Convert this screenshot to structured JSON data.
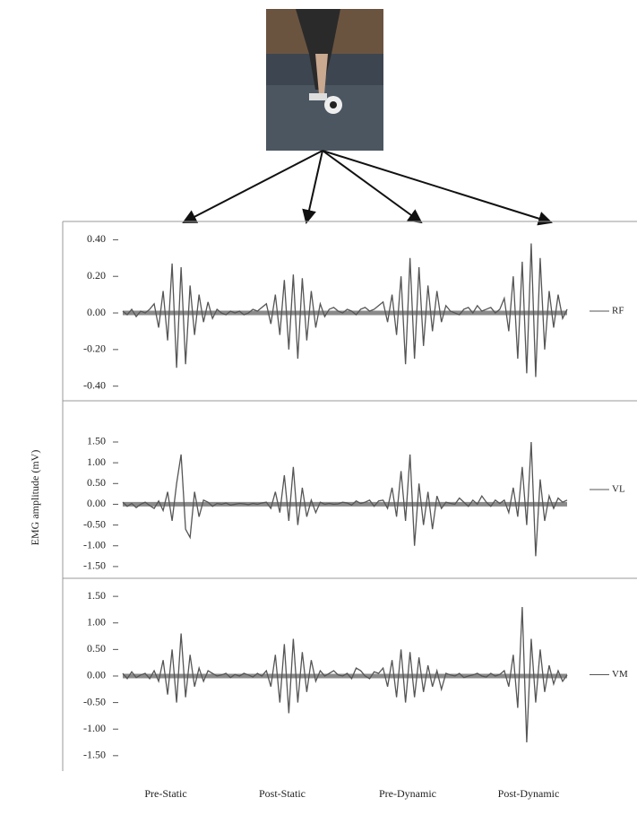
{
  "y_axis_label": "EMG amplitude (mV)",
  "condition_labels": [
    "Pre-Static",
    "Post-Static",
    "Pre-Dynamic",
    "Post-Dynamic"
  ],
  "chart_data": [
    {
      "type": "line",
      "ylim": [
        -0.48,
        0.5
      ],
      "yticks": [
        {
          "value": 0.4,
          "label": "0.40"
        },
        {
          "value": 0.2,
          "label": "0.20"
        },
        {
          "value": 0,
          "label": "0.00"
        },
        {
          "value": -0.2,
          "label": "-0.20"
        },
        {
          "value": -0.4,
          "label": "-0.40"
        }
      ],
      "series": [
        {
          "name": "RF",
          "color": "#555555",
          "values": [
            0.01,
            -0.01,
            0.02,
            -0.02,
            0.01,
            0.0,
            0.02,
            0.05,
            -0.08,
            0.12,
            -0.15,
            0.27,
            -0.3,
            0.25,
            -0.28,
            0.15,
            -0.12,
            0.1,
            -0.05,
            0.06,
            -0.03,
            0.02,
            0.0,
            -0.01,
            0.01,
            0.0,
            0.01,
            -0.01,
            0.0,
            0.02,
            0.01,
            0.03,
            0.05,
            -0.06,
            0.1,
            -0.12,
            0.18,
            -0.2,
            0.21,
            -0.25,
            0.19,
            -0.15,
            0.12,
            -0.08,
            0.05,
            -0.02,
            0.02,
            0.03,
            0.01,
            0.0,
            0.02,
            0.01,
            -0.01,
            0.02,
            0.03,
            0.01,
            0.02,
            0.04,
            0.06,
            -0.05,
            0.1,
            -0.12,
            0.2,
            -0.28,
            0.3,
            -0.25,
            0.25,
            -0.18,
            0.15,
            -0.1,
            0.12,
            -0.05,
            0.04,
            0.01,
            0.0,
            -0.01,
            0.02,
            0.03,
            0.0,
            0.04,
            0.01,
            0.02,
            0.03,
            0.0,
            0.02,
            0.08,
            -0.1,
            0.2,
            -0.25,
            0.28,
            -0.33,
            0.38,
            -0.35,
            0.3,
            -0.2,
            0.12,
            -0.08,
            0.1,
            -0.03,
            0.02
          ]
        }
      ]
    },
    {
      "type": "line",
      "ylim": [
        -1.74,
        2.45
      ],
      "yticks": [
        {
          "value": 1.5,
          "label": "1.50"
        },
        {
          "value": 1,
          "label": "1.00"
        },
        {
          "value": 0.5,
          "label": "0.50"
        },
        {
          "value": 0,
          "label": "0.00"
        },
        {
          "value": -0.5,
          "label": "-0.50"
        },
        {
          "value": -1,
          "label": "-1.00"
        },
        {
          "value": -1.5,
          "label": "-1.50"
        }
      ],
      "series": [
        {
          "name": "VL",
          "color": "#555555",
          "values": [
            0.05,
            -0.05,
            0.02,
            -0.08,
            0.0,
            0.05,
            -0.03,
            -0.1,
            0.08,
            -0.15,
            0.3,
            -0.4,
            0.5,
            1.2,
            -0.6,
            -0.8,
            0.3,
            -0.3,
            0.1,
            0.05,
            -0.05,
            0.02,
            0.0,
            0.03,
            -0.02,
            0.0,
            0.02,
            0.01,
            -0.01,
            0.02,
            0.0,
            0.03,
            0.05,
            -0.1,
            0.3,
            -0.2,
            0.7,
            -0.4,
            0.9,
            -0.5,
            0.4,
            -0.3,
            0.1,
            -0.2,
            0.05,
            0.0,
            0.02,
            0.0,
            0.01,
            0.05,
            0.03,
            -0.02,
            0.08,
            0.02,
            0.05,
            0.1,
            -0.05,
            0.08,
            0.1,
            -0.1,
            0.4,
            -0.3,
            0.8,
            -0.4,
            1.2,
            -1.0,
            0.5,
            -0.5,
            0.3,
            -0.6,
            0.2,
            -0.1,
            0.05,
            0.02,
            0.0,
            0.15,
            0.05,
            -0.05,
            0.1,
            0.0,
            0.2,
            0.05,
            -0.05,
            0.1,
            0.02,
            0.1,
            -0.2,
            0.4,
            -0.3,
            0.9,
            -0.5,
            1.5,
            -1.25,
            0.6,
            -0.4,
            0.2,
            -0.1,
            0.15,
            0.05,
            0.1
          ]
        }
      ]
    },
    {
      "type": "line",
      "ylim": [
        -1.79,
        1.84
      ],
      "yticks": [
        {
          "value": 1.5,
          "label": "1.50"
        },
        {
          "value": 1,
          "label": "1.00"
        },
        {
          "value": 0.5,
          "label": "0.50"
        },
        {
          "value": 0,
          "label": "0.00"
        },
        {
          "value": -0.5,
          "label": "-0.50"
        },
        {
          "value": -1,
          "label": "-1.00"
        },
        {
          "value": -1.5,
          "label": "-1.50"
        }
      ],
      "series": [
        {
          "name": "VM",
          "color": "#555555",
          "values": [
            0.05,
            -0.05,
            0.08,
            -0.03,
            0.02,
            0.05,
            -0.05,
            0.1,
            -0.1,
            0.3,
            -0.35,
            0.5,
            -0.5,
            0.8,
            -0.4,
            0.4,
            -0.2,
            0.15,
            -0.1,
            0.1,
            0.05,
            0.0,
            0.02,
            0.05,
            -0.03,
            0.03,
            0.0,
            0.05,
            0.02,
            -0.02,
            0.05,
            0.0,
            0.1,
            -0.2,
            0.4,
            -0.5,
            0.6,
            -0.7,
            0.7,
            -0.5,
            0.45,
            -0.3,
            0.3,
            -0.1,
            0.1,
            0.0,
            0.05,
            0.1,
            0.02,
            0.0,
            0.05,
            -0.05,
            0.15,
            0.1,
            0.0,
            -0.05,
            0.08,
            0.05,
            0.15,
            -0.2,
            0.3,
            -0.4,
            0.5,
            -0.5,
            0.45,
            -0.4,
            0.35,
            -0.3,
            0.2,
            -0.2,
            0.1,
            -0.25,
            0.05,
            0.02,
            0.0,
            0.05,
            -0.03,
            0.0,
            0.02,
            0.05,
            0.0,
            -0.02,
            0.05,
            0.0,
            0.03,
            0.1,
            -0.2,
            0.4,
            -0.6,
            1.3,
            -1.25,
            0.7,
            -0.5,
            0.5,
            -0.3,
            0.2,
            -0.15,
            0.1,
            -0.1,
            0.02
          ]
        }
      ]
    }
  ]
}
